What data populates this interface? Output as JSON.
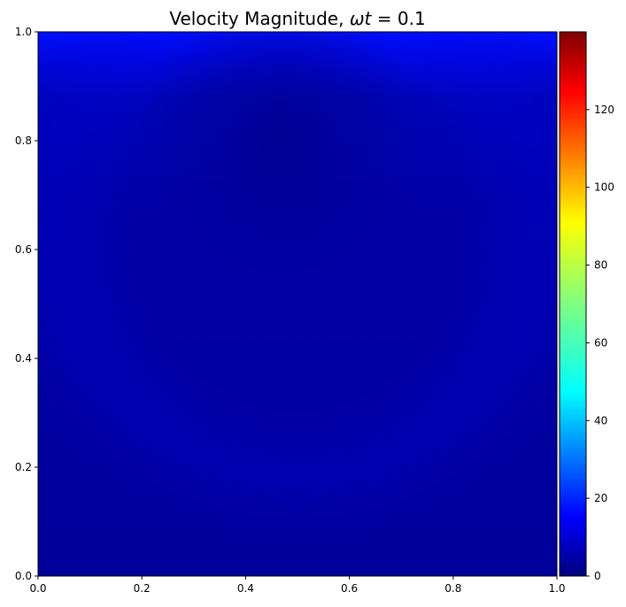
{
  "chart_data": {
    "type": "heatmap",
    "title_prefix": "Velocity Magnitude, ",
    "title_symbol": "ωt",
    "title_suffix": " = 0.1",
    "xlabel": "",
    "ylabel": "",
    "xlim": [
      0,
      1
    ],
    "ylim": [
      0,
      1
    ],
    "x_ticks": [
      "0.0",
      "0.2",
      "0.4",
      "0.6",
      "0.8",
      "1.0"
    ],
    "y_ticks": [
      "0.0",
      "0.2",
      "0.4",
      "0.6",
      "0.8",
      "1.0"
    ],
    "colorbar": {
      "colormap": "jet",
      "range": [
        0,
        140
      ],
      "ticks": [
        "0",
        "20",
        "40",
        "60",
        "80",
        "100",
        "120"
      ]
    },
    "field_description_values": {
      "lid_top_magnitude": 12,
      "interior_magnitude": 3,
      "vortex_core_magnitude": 2
    },
    "grid": false
  }
}
